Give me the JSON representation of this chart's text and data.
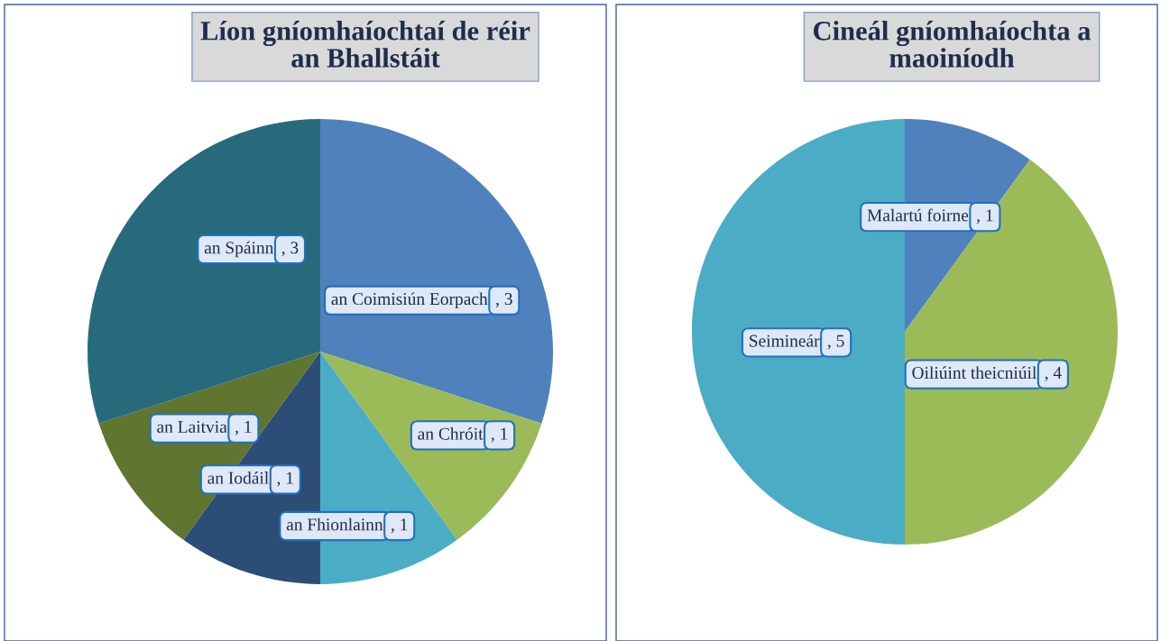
{
  "chart_data": [
    {
      "type": "pie",
      "title": "Líon gníomhaíochtaí de réir\nan Bhallstáit",
      "categories": [
        "an Coimisiún Eorpach",
        "an Chróit",
        "an Fhionlainn",
        "an Iodáil",
        "an Laitvia",
        "an Spáinn"
      ],
      "values": [
        3,
        1,
        1,
        1,
        1,
        3
      ],
      "colors": [
        "#4f81bd",
        "#9bbb59",
        "#4bacc6",
        "#2c4d75",
        "#5f7530",
        "#276a7c"
      ],
      "value_labels": [
        ", 3",
        ", 1",
        ", 1",
        ", 1",
        ", 1",
        ", 3"
      ]
    },
    {
      "type": "pie",
      "title": "Cineál gníomhaíochta a\nmaoiníodh",
      "categories": [
        "Malartú foirne",
        "Oiliúint theicniúil",
        "Seimineár"
      ],
      "values": [
        1,
        4,
        5
      ],
      "colors": [
        "#4f81bd",
        "#9bbb59",
        "#4bacc6"
      ],
      "value_labels": [
        ", 1",
        ", 4",
        ", 5"
      ]
    }
  ]
}
